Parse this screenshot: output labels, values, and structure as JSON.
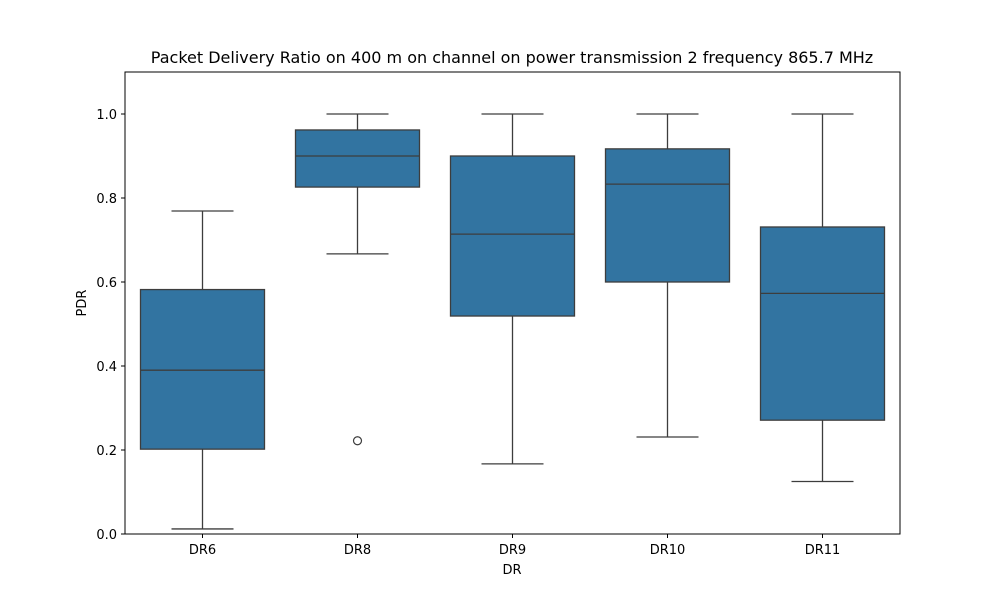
{
  "chart_data": {
    "type": "box",
    "title": "Packet Delivery Ratio on 400 m on channel on power transmission 2 frequency 865.7 MHz",
    "xlabel": "DR",
    "ylabel": "PDR",
    "ylim": [
      0.0,
      1.1
    ],
    "yticks": [
      "0.0",
      "0.2",
      "0.4",
      "0.6",
      "0.8",
      "1.0"
    ],
    "grid": false,
    "box_color": "#3274a1",
    "line_color": "#3d3d3d",
    "categories": [
      "DR6",
      "DR8",
      "DR9",
      "DR10",
      "DR11"
    ],
    "boxes": [
      {
        "label": "DR6",
        "whisker_low": 0.012,
        "q1": 0.202,
        "median": 0.39,
        "q3": 0.582,
        "whisker_high": 0.769,
        "outliers": []
      },
      {
        "label": "DR8",
        "whisker_low": 0.667,
        "q1": 0.826,
        "median": 0.9,
        "q3": 0.962,
        "whisker_high": 1.0,
        "outliers": [
          0.222
        ]
      },
      {
        "label": "DR9",
        "whisker_low": 0.167,
        "q1": 0.519,
        "median": 0.714,
        "q3": 0.9,
        "whisker_high": 1.0,
        "outliers": []
      },
      {
        "label": "DR10",
        "whisker_low": 0.231,
        "q1": 0.6,
        "median": 0.833,
        "q3": 0.917,
        "whisker_high": 1.0,
        "outliers": []
      },
      {
        "label": "DR11",
        "whisker_low": 0.125,
        "q1": 0.271,
        "median": 0.573,
        "q3": 0.731,
        "whisker_high": 1.0,
        "outliers": []
      }
    ]
  }
}
